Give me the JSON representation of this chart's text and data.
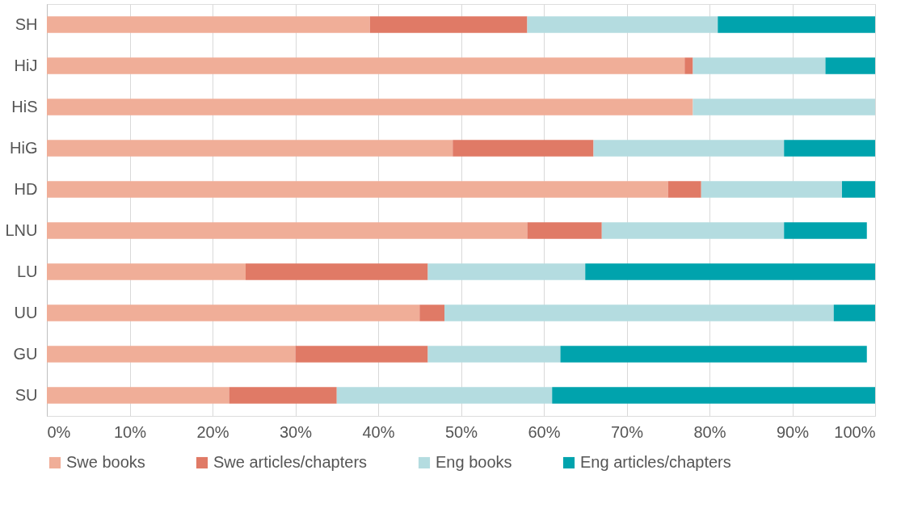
{
  "chart_data": {
    "type": "bar",
    "orientation": "horizontal",
    "stacked": true,
    "categories": [
      "SH",
      "HiJ",
      "HiS",
      "HiG",
      "HD",
      "LNU",
      "LU",
      "UU",
      "GU",
      "SU"
    ],
    "series": [
      {
        "name": "Swe books",
        "color": "#f0ae98",
        "values": [
          39,
          77,
          78,
          49,
          75,
          58,
          24,
          45,
          30,
          22
        ]
      },
      {
        "name": "Swe articles/chapters",
        "color": "#e07a66",
        "values": [
          19,
          1,
          0,
          17,
          4,
          9,
          22,
          3,
          16,
          13
        ]
      },
      {
        "name": "Eng books",
        "color": "#b4dce0",
        "values": [
          23,
          16,
          22,
          23,
          17,
          22,
          19,
          47,
          16,
          26
        ]
      },
      {
        "name": "Eng articles/chapters",
        "color": "#00a3ad",
        "values": [
          19,
          6,
          0,
          11,
          4,
          10,
          35,
          5,
          37,
          39
        ]
      }
    ],
    "xlim": [
      0,
      100
    ],
    "xticks": [
      {
        "value": 0,
        "label": "0%"
      },
      {
        "value": 10,
        "label": "10%"
      },
      {
        "value": 20,
        "label": "20%"
      },
      {
        "value": 30,
        "label": "30%"
      },
      {
        "value": 40,
        "label": "40%"
      },
      {
        "value": 50,
        "label": "50%"
      },
      {
        "value": 60,
        "label": "60%"
      },
      {
        "value": 70,
        "label": "70%"
      },
      {
        "value": 80,
        "label": "80%"
      },
      {
        "value": 90,
        "label": "90%"
      },
      {
        "value": 100,
        "label": "100%"
      }
    ],
    "grid": "x",
    "legend": "bottom"
  }
}
